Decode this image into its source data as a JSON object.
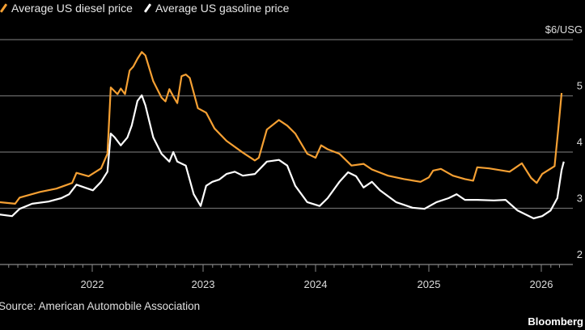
{
  "chart_data": {
    "type": "line",
    "title": "",
    "xlabel": "",
    "ylabel": "",
    "y_unit_label": "$6/USG",
    "ylim": [
      2,
      6
    ],
    "yticks": [
      2,
      3,
      4,
      5,
      6
    ],
    "ytick_labels": [
      "2",
      "3",
      "4",
      "5",
      "$6/USG"
    ],
    "xlim": [
      "2021-03-01",
      "2026-04-01"
    ],
    "xtick_labels": [
      "2022",
      "2023",
      "2024",
      "2025",
      "2026"
    ],
    "grid": true,
    "legend_position": "top-left",
    "series": [
      {
        "name": "Average US diesel price",
        "color": "#f5a033",
        "points": [
          [
            "2021-03-01",
            3.11
          ],
          [
            "2021-04-22",
            3.08
          ],
          [
            "2021-05-07",
            3.19
          ],
          [
            "2021-07-13",
            3.29
          ],
          [
            "2021-09-05",
            3.35
          ],
          [
            "2021-10-27",
            3.45
          ],
          [
            "2021-11-10",
            3.63
          ],
          [
            "2021-12-20",
            3.57
          ],
          [
            "2022-01-30",
            3.71
          ],
          [
            "2022-02-20",
            3.97
          ],
          [
            "2022-03-03",
            5.15
          ],
          [
            "2022-03-25",
            5.03
          ],
          [
            "2022-04-05",
            5.13
          ],
          [
            "2022-04-19",
            5.03
          ],
          [
            "2022-05-04",
            5.45
          ],
          [
            "2022-05-16",
            5.52
          ],
          [
            "2022-05-30",
            5.66
          ],
          [
            "2022-06-13",
            5.78
          ],
          [
            "2022-06-25",
            5.72
          ],
          [
            "2022-07-21",
            5.26
          ],
          [
            "2022-08-17",
            4.97
          ],
          [
            "2022-08-30",
            4.9
          ],
          [
            "2022-09-12",
            5.12
          ],
          [
            "2022-09-25",
            4.99
          ],
          [
            "2022-10-08",
            4.87
          ],
          [
            "2022-10-22",
            5.35
          ],
          [
            "2022-11-05",
            5.38
          ],
          [
            "2022-11-18",
            5.32
          ],
          [
            "2022-12-15",
            4.78
          ],
          [
            "2023-01-11",
            4.7
          ],
          [
            "2023-02-07",
            4.42
          ],
          [
            "2023-03-18",
            4.2
          ],
          [
            "2023-05-10",
            3.99
          ],
          [
            "2023-06-18",
            3.85
          ],
          [
            "2023-07-01",
            3.9
          ],
          [
            "2023-07-27",
            4.4
          ],
          [
            "2023-09-04",
            4.57
          ],
          [
            "2023-10-01",
            4.47
          ],
          [
            "2023-10-27",
            4.33
          ],
          [
            "2023-12-05",
            3.97
          ],
          [
            "2024-01-01",
            3.9
          ],
          [
            "2024-01-19",
            4.12
          ],
          [
            "2024-02-09",
            4.05
          ],
          [
            "2024-03-18",
            3.97
          ],
          [
            "2024-04-26",
            3.76
          ],
          [
            "2024-06-04",
            3.79
          ],
          [
            "2024-07-01",
            3.69
          ],
          [
            "2024-08-22",
            3.58
          ],
          [
            "2024-10-13",
            3.52
          ],
          [
            "2024-12-05",
            3.47
          ],
          [
            "2025-01-01",
            3.55
          ],
          [
            "2025-01-15",
            3.67
          ],
          [
            "2025-02-09",
            3.7
          ],
          [
            "2025-03-20",
            3.58
          ],
          [
            "2025-04-28",
            3.52
          ],
          [
            "2025-05-25",
            3.49
          ],
          [
            "2025-06-07",
            3.73
          ],
          [
            "2025-07-16",
            3.71
          ],
          [
            "2025-09-20",
            3.65
          ],
          [
            "2025-10-30",
            3.8
          ],
          [
            "2025-11-29",
            3.54
          ],
          [
            "2025-12-17",
            3.45
          ],
          [
            "2026-01-04",
            3.61
          ],
          [
            "2026-02-13",
            3.75
          ],
          [
            "2026-02-25",
            4.4
          ],
          [
            "2026-03-08",
            5.05
          ]
        ]
      },
      {
        "name": "Average US gasoline price",
        "color": "#ffffff",
        "points": [
          [
            "2021-03-01",
            2.89
          ],
          [
            "2021-04-12",
            2.86
          ],
          [
            "2021-05-07",
            2.99
          ],
          [
            "2021-06-17",
            3.08
          ],
          [
            "2021-08-10",
            3.12
          ],
          [
            "2021-09-21",
            3.18
          ],
          [
            "2021-10-17",
            3.25
          ],
          [
            "2021-11-10",
            3.42
          ],
          [
            "2021-12-07",
            3.37
          ],
          [
            "2022-01-03",
            3.32
          ],
          [
            "2022-01-30",
            3.47
          ],
          [
            "2022-02-20",
            3.65
          ],
          [
            "2022-03-03",
            4.33
          ],
          [
            "2022-03-16",
            4.26
          ],
          [
            "2022-04-05",
            4.12
          ],
          [
            "2022-04-27",
            4.26
          ],
          [
            "2022-05-11",
            4.47
          ],
          [
            "2022-05-30",
            4.91
          ],
          [
            "2022-06-13",
            5.01
          ],
          [
            "2022-06-25",
            4.83
          ],
          [
            "2022-07-21",
            4.26
          ],
          [
            "2022-08-17",
            3.97
          ],
          [
            "2022-09-12",
            3.83
          ],
          [
            "2022-09-25",
            4.0
          ],
          [
            "2022-10-08",
            3.83
          ],
          [
            "2022-11-05",
            3.76
          ],
          [
            "2022-12-01",
            3.25
          ],
          [
            "2022-12-24",
            3.04
          ],
          [
            "2023-01-11",
            3.4
          ],
          [
            "2023-01-31",
            3.47
          ],
          [
            "2023-02-22",
            3.51
          ],
          [
            "2023-03-18",
            3.61
          ],
          [
            "2023-04-14",
            3.65
          ],
          [
            "2023-05-10",
            3.58
          ],
          [
            "2023-06-18",
            3.61
          ],
          [
            "2023-07-27",
            3.83
          ],
          [
            "2023-09-04",
            3.86
          ],
          [
            "2023-10-01",
            3.76
          ],
          [
            "2023-10-27",
            3.4
          ],
          [
            "2023-12-05",
            3.11
          ],
          [
            "2024-01-14",
            3.04
          ],
          [
            "2024-02-09",
            3.18
          ],
          [
            "2024-03-18",
            3.47
          ],
          [
            "2024-04-15",
            3.64
          ],
          [
            "2024-05-11",
            3.57
          ],
          [
            "2024-06-04",
            3.37
          ],
          [
            "2024-07-01",
            3.47
          ],
          [
            "2024-07-27",
            3.32
          ],
          [
            "2024-09-17",
            3.11
          ],
          [
            "2024-11-09",
            3.01
          ],
          [
            "2024-12-18",
            2.99
          ],
          [
            "2025-01-26",
            3.11
          ],
          [
            "2025-03-06",
            3.18
          ],
          [
            "2025-04-01",
            3.25
          ],
          [
            "2025-04-28",
            3.15
          ],
          [
            "2025-06-07",
            3.15
          ],
          [
            "2025-07-31",
            3.14
          ],
          [
            "2025-09-07",
            3.15
          ],
          [
            "2025-10-16",
            2.96
          ],
          [
            "2025-12-07",
            2.82
          ],
          [
            "2026-01-04",
            2.86
          ],
          [
            "2026-01-31",
            2.96
          ],
          [
            "2026-02-22",
            3.18
          ],
          [
            "2026-03-08",
            3.68
          ],
          [
            "2026-03-15",
            3.83
          ]
        ]
      }
    ],
    "source": "Source: American Automobile Association",
    "brand": "Bloomberg"
  }
}
